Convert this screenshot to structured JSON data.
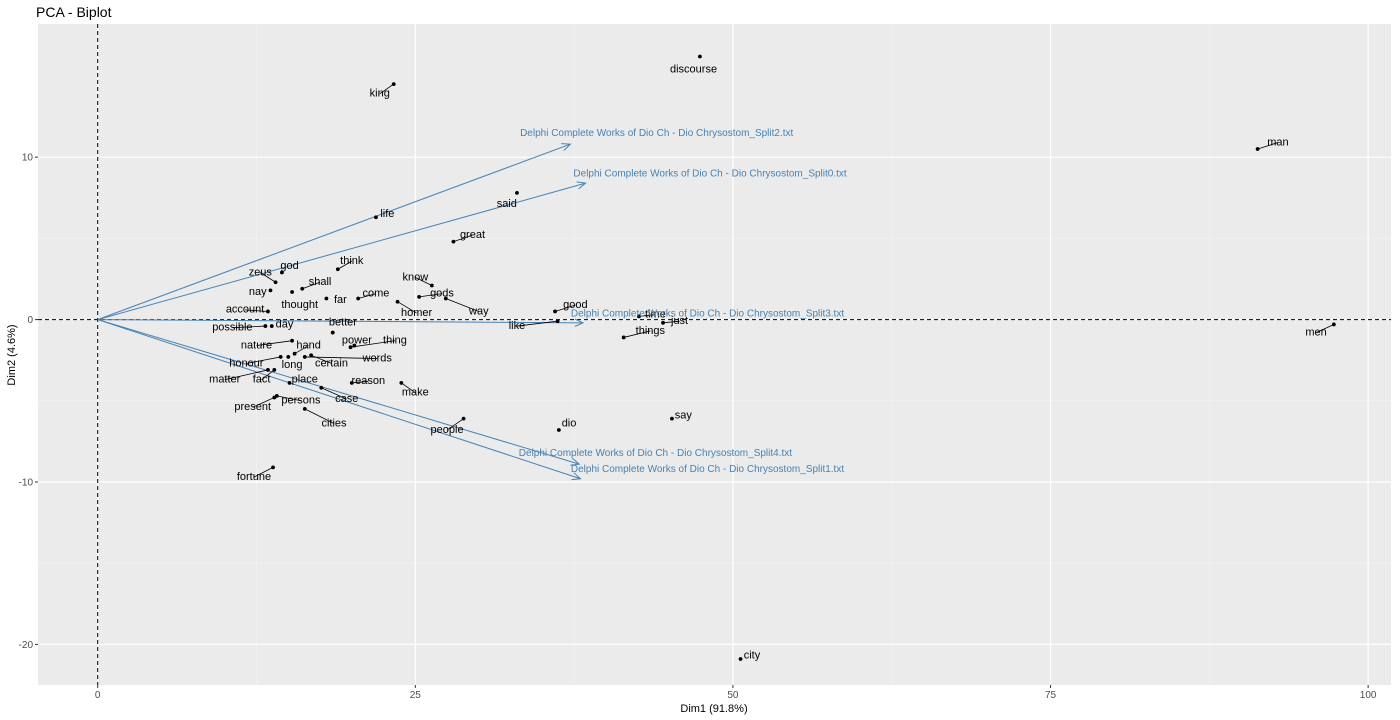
{
  "chart_data": {
    "type": "scatter",
    "title": "PCA - Biplot",
    "xlabel": "Dim1 (91.8%)",
    "ylabel": "Dim2 (4.6%)",
    "xlim": [
      -4.7,
      101.8
    ],
    "ylim": [
      -22.5,
      18.2
    ],
    "xticks": [
      0,
      25,
      50,
      75,
      100
    ],
    "yticks": [
      -20,
      -10,
      0,
      10
    ],
    "grid": true,
    "colors": {
      "panel": "#ebebeb",
      "grid_major": "#ffffff",
      "grid_minor": "#f4f4f4",
      "points": "#000000",
      "variables": "#4682b4"
    },
    "points": [
      {
        "name": "discourse",
        "x": 47.4,
        "y": 16.2,
        "lx": 46.9,
        "ly": 15.4
      },
      {
        "name": "king",
        "x": 23.3,
        "y": 14.5,
        "lx": 22.2,
        "ly": 13.9
      },
      {
        "name": "man",
        "x": 91.3,
        "y": 10.5,
        "lx": 92.9,
        "ly": 10.9
      },
      {
        "name": "said",
        "x": 33.0,
        "y": 7.8,
        "lx": 32.2,
        "ly": 7.1
      },
      {
        "name": "life",
        "x": 21.9,
        "y": 6.3,
        "lx": 22.8,
        "ly": 6.5
      },
      {
        "name": "great",
        "x": 28.0,
        "y": 4.8,
        "lx": 29.5,
        "ly": 5.2
      },
      {
        "name": "think",
        "x": 18.9,
        "y": 3.1,
        "lx": 20.0,
        "ly": 3.6
      },
      {
        "name": "zeus",
        "x": 14.0,
        "y": 2.3,
        "lx": 12.8,
        "ly": 2.9
      },
      {
        "name": "god",
        "x": 14.5,
        "y": 2.9,
        "lx": 15.1,
        "ly": 3.3
      },
      {
        "name": "shall",
        "x": 16.1,
        "y": 1.9,
        "lx": 17.5,
        "ly": 2.3
      },
      {
        "name": "know",
        "x": 26.3,
        "y": 2.1,
        "lx": 25.0,
        "ly": 2.6
      },
      {
        "name": "gods",
        "x": 25.3,
        "y": 1.4,
        "lx": 27.1,
        "ly": 1.6
      },
      {
        "name": "nay",
        "x": 13.6,
        "y": 1.8,
        "lx": 12.6,
        "ly": 1.7
      },
      {
        "name": "come",
        "x": 20.5,
        "y": 1.3,
        "lx": 21.9,
        "ly": 1.6
      },
      {
        "name": "far",
        "x": 18.0,
        "y": 1.3,
        "lx": 19.1,
        "ly": 1.2
      },
      {
        "name": "thought",
        "x": 15.3,
        "y": 1.7,
        "lx": 15.9,
        "ly": 0.9
      },
      {
        "name": "account",
        "x": 13.4,
        "y": 0.5,
        "lx": 11.6,
        "ly": 0.6
      },
      {
        "name": "homer",
        "x": 23.6,
        "y": 1.1,
        "lx": 25.1,
        "ly": 0.4
      },
      {
        "name": "way",
        "x": 27.4,
        "y": 1.3,
        "lx": 30.0,
        "ly": 0.5
      },
      {
        "name": "good",
        "x": 36.0,
        "y": 0.5,
        "lx": 37.6,
        "ly": 0.9
      },
      {
        "name": "time",
        "x": 42.6,
        "y": 0.2,
        "lx": 43.9,
        "ly": 0.3
      },
      {
        "name": "just",
        "x": 44.5,
        "y": -0.2,
        "lx": 45.8,
        "ly": -0.1
      },
      {
        "name": "day",
        "x": 13.7,
        "y": -0.4,
        "lx": 14.7,
        "ly": -0.3
      },
      {
        "name": "possible",
        "x": 13.2,
        "y": -0.4,
        "lx": 10.6,
        "ly": -0.5
      },
      {
        "name": "like",
        "x": 36.2,
        "y": -0.1,
        "lx": 33.0,
        "ly": -0.4
      },
      {
        "name": "things",
        "x": 41.4,
        "y": -1.1,
        "lx": 43.5,
        "ly": -0.7
      },
      {
        "name": "men",
        "x": 97.3,
        "y": -0.3,
        "lx": 95.9,
        "ly": -0.8
      },
      {
        "name": "better",
        "x": 18.5,
        "y": -0.8,
        "lx": 19.3,
        "ly": -0.2
      },
      {
        "name": "nature",
        "x": 15.3,
        "y": -1.3,
        "lx": 12.5,
        "ly": -1.6
      },
      {
        "name": "hand",
        "x": 15.5,
        "y": -2.1,
        "lx": 16.6,
        "ly": -1.6
      },
      {
        "name": "power",
        "x": 20.2,
        "y": -1.6,
        "lx": 20.4,
        "ly": -1.3
      },
      {
        "name": "thing",
        "x": 19.9,
        "y": -1.7,
        "lx": 23.4,
        "ly": -1.3
      },
      {
        "name": "honour",
        "x": 14.4,
        "y": -2.3,
        "lx": 11.7,
        "ly": -2.7
      },
      {
        "name": "long",
        "x": 15.0,
        "y": -2.3,
        "lx": 15.3,
        "ly": -2.8
      },
      {
        "name": "certain",
        "x": 16.8,
        "y": -2.2,
        "lx": 18.4,
        "ly": -2.7
      },
      {
        "name": "words",
        "x": 16.3,
        "y": -2.3,
        "lx": 22.0,
        "ly": -2.4
      },
      {
        "name": "matter",
        "x": 13.4,
        "y": -3.1,
        "lx": 10.0,
        "ly": -3.7
      },
      {
        "name": "fact",
        "x": 13.9,
        "y": -3.1,
        "lx": 12.9,
        "ly": -3.7
      },
      {
        "name": "place",
        "x": 15.1,
        "y": -3.9,
        "lx": 16.3,
        "ly": -3.7
      },
      {
        "name": "reason",
        "x": 20.0,
        "y": -3.9,
        "lx": 21.3,
        "ly": -3.8
      },
      {
        "name": "make",
        "x": 23.9,
        "y": -3.9,
        "lx": 25.0,
        "ly": -4.5
      },
      {
        "name": "case",
        "x": 17.6,
        "y": -4.2,
        "lx": 19.6,
        "ly": -4.9
      },
      {
        "name": "persons",
        "x": 14.1,
        "y": -4.7,
        "lx": 16.0,
        "ly": -5.0
      },
      {
        "name": "present",
        "x": 13.9,
        "y": -4.8,
        "lx": 12.2,
        "ly": -5.4
      },
      {
        "name": "cities",
        "x": 16.3,
        "y": -5.5,
        "lx": 18.6,
        "ly": -6.4
      },
      {
        "name": "people",
        "x": 28.8,
        "y": -6.1,
        "lx": 27.5,
        "ly": -6.8
      },
      {
        "name": "dio",
        "x": 36.3,
        "y": -6.8,
        "lx": 37.1,
        "ly": -6.4
      },
      {
        "name": "say",
        "x": 45.2,
        "y": -6.1,
        "lx": 46.1,
        "ly": -5.9
      },
      {
        "name": "fortune",
        "x": 13.8,
        "y": -9.1,
        "lx": 12.3,
        "ly": -9.7
      },
      {
        "name": "city",
        "x": 50.6,
        "y": -20.9,
        "lx": 51.5,
        "ly": -20.7
      }
    ],
    "variables": [
      {
        "name": "Delphi Complete Works of Dio Ch - Dio Chrysostom_Split2.txt",
        "x": 37.2,
        "y": 10.8,
        "lx": 44.0,
        "ly": 11.3
      },
      {
        "name": "Delphi Complete Works of Dio Ch - Dio Chrysostom_Split0.txt",
        "x": 38.4,
        "y": 8.4,
        "lx": 48.2,
        "ly": 8.8
      },
      {
        "name": "Delphi Complete Works of Dio Ch - Dio Chrysostom_Split3.txt",
        "x": 38.2,
        "y": -0.2,
        "lx": 48.0,
        "ly": 0.2
      },
      {
        "name": "Delphi Complete Works of Dio Ch - Dio Chrysostom_Split4.txt",
        "x": 37.9,
        "y": -8.9,
        "lx": 43.9,
        "ly": -8.4
      },
      {
        "name": "Delphi Complete Works of Dio Ch - Dio Chrysostom_Split1.txt",
        "x": 38.0,
        "y": -9.8,
        "lx": 48.0,
        "ly": -9.4
      }
    ]
  }
}
